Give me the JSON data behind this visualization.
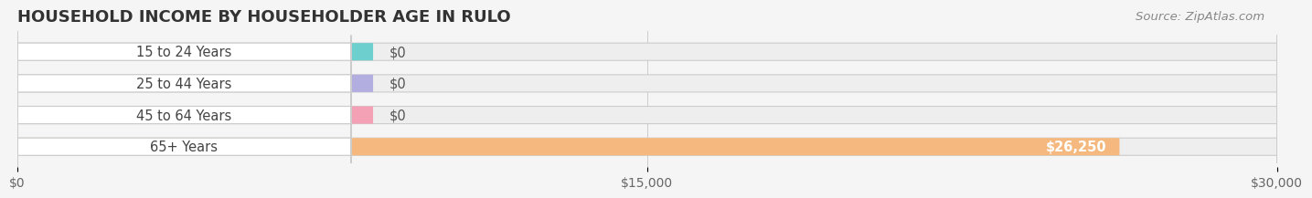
{
  "title": "HOUSEHOLD INCOME BY HOUSEHOLDER AGE IN RULO",
  "source": "Source: ZipAtlas.com",
  "categories": [
    "15 to 24 Years",
    "25 to 44 Years",
    "45 to 64 Years",
    "65+ Years"
  ],
  "values": [
    0,
    0,
    0,
    26250
  ],
  "bar_colors": [
    "#6ecfcf",
    "#b3aee0",
    "#f4a0b5",
    "#f5b97f"
  ],
  "xlim": [
    0,
    30000
  ],
  "xticks": [
    0,
    15000,
    30000
  ],
  "xtick_labels": [
    "$0",
    "$15,000",
    "$30,000"
  ],
  "background_color": "#f5f5f5",
  "bar_background_color": "#eeeeee",
  "bar_height": 0.55,
  "bar_label_color_zero": "#555555",
  "bar_label_color_nonzero": "#ffffff",
  "value_label_26250": "$26,250",
  "title_fontsize": 13,
  "label_fontsize": 10.5,
  "tick_fontsize": 10,
  "source_fontsize": 9.5
}
